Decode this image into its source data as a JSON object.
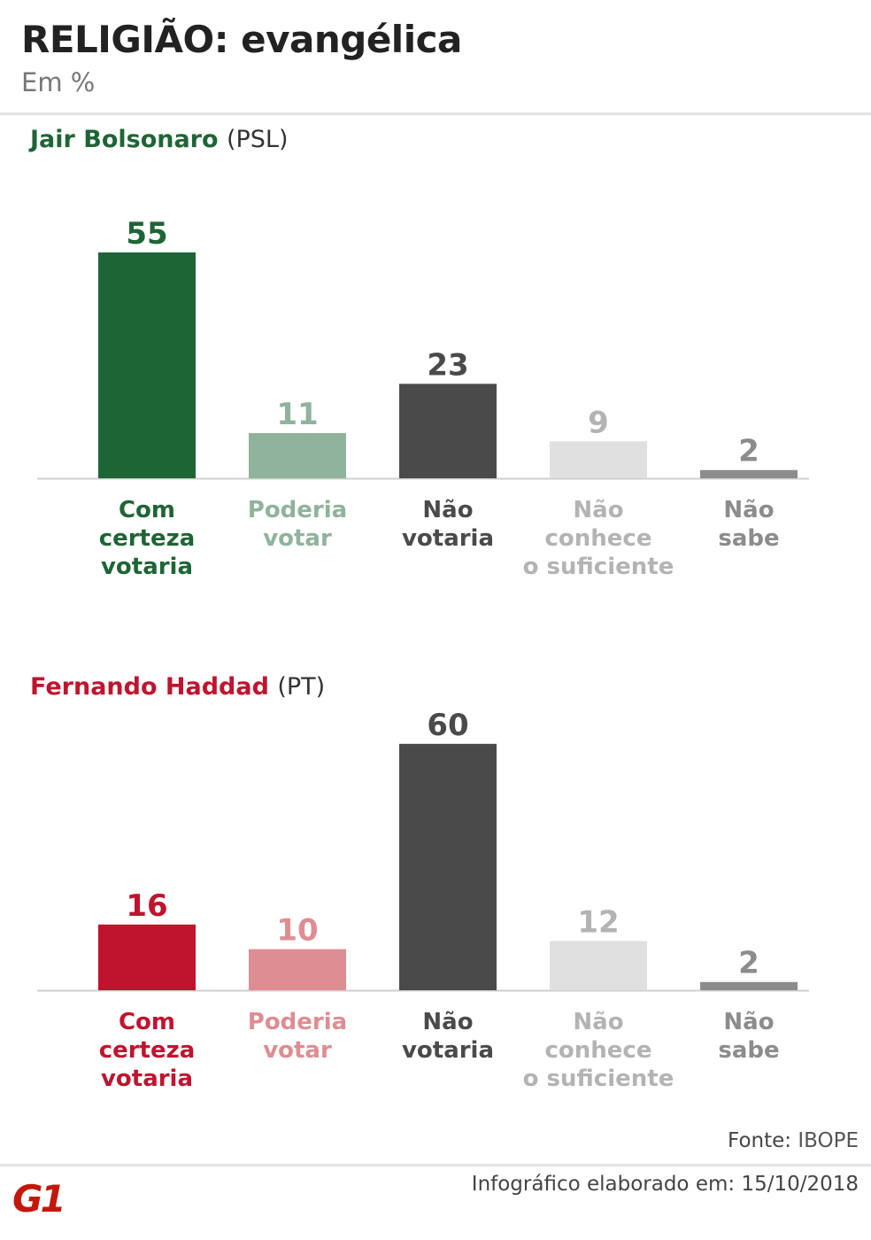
{
  "header": {
    "title": "RELIGIÃO: evangélica",
    "subtitle": "Em %"
  },
  "chart_data": [
    {
      "type": "bar",
      "title": "Jair Bolsonaro",
      "party": "(PSL)",
      "title_color": "#1e6535",
      "categories": [
        [
          "Com",
          "certeza",
          "votaria"
        ],
        [
          "Poderia",
          "votar"
        ],
        [
          "Não",
          "votaria"
        ],
        [
          "Não",
          "conhece",
          "o suficiente"
        ],
        [
          "Não",
          "sabe"
        ]
      ],
      "values": [
        55,
        11,
        23,
        9,
        2
      ],
      "colors": [
        "#1e6535",
        "#8fb39c",
        "#4a4a4a",
        "#e0e0e0",
        "#8c8c8c"
      ],
      "label_colors": [
        "#1e6535",
        "#8fb39c",
        "#4a4a4a",
        "#b3b3b3",
        "#8c8c8c"
      ],
      "ylim": [
        0,
        60
      ]
    },
    {
      "type": "bar",
      "title": "Fernando Haddad",
      "party": "(PT)",
      "title_color": "#c0142e",
      "categories": [
        [
          "Com",
          "certeza",
          "votaria"
        ],
        [
          "Poderia",
          "votar"
        ],
        [
          "Não",
          "votaria"
        ],
        [
          "Não",
          "conhece",
          "o suficiente"
        ],
        [
          "Não",
          "sabe"
        ]
      ],
      "values": [
        16,
        10,
        60,
        12,
        2
      ],
      "colors": [
        "#c0142e",
        "#de8d93",
        "#4a4a4a",
        "#e0e0e0",
        "#8c8c8c"
      ],
      "label_colors": [
        "#c0142e",
        "#de8d93",
        "#4a4a4a",
        "#b3b3b3",
        "#8c8c8c"
      ],
      "ylim": [
        0,
        60
      ]
    }
  ],
  "footer": {
    "source_label": "Fonte:",
    "source_value": "IBOPE",
    "date_text": "Infográfico elaborado em: 15/10/2018",
    "logo_text": "G1",
    "logo_color": "#c4170c"
  }
}
